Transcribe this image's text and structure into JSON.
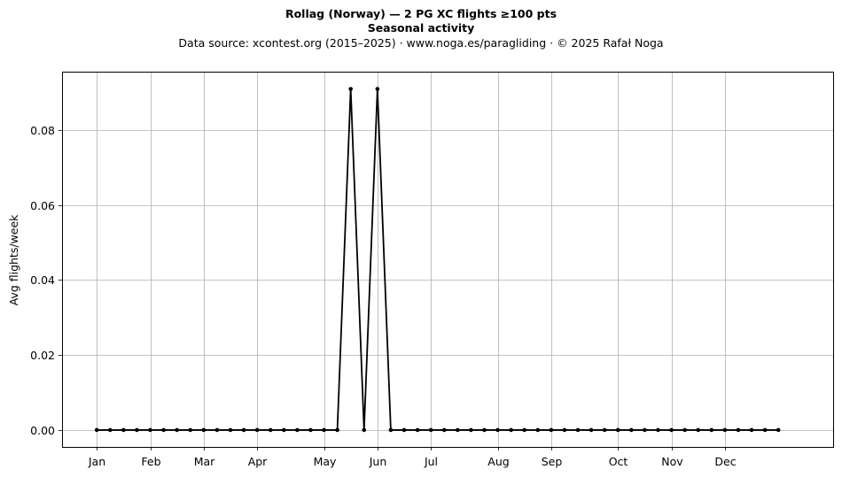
{
  "chart_data": {
    "type": "line",
    "title": "Rollag (Norway)  —  2 PG XC flights ≥100 pts",
    "subtitle": "Seasonal activity",
    "source": "Data source: xcontest.org (2015–2025)  ·  www.noga.es/paragliding  ·  © 2025 Rafał Noga",
    "xlabel": "",
    "ylabel": "Avg flights/week",
    "ylim": [
      -0.0045,
      0.0955
    ],
    "yticks": [
      0.0,
      0.02,
      0.04,
      0.06,
      0.08
    ],
    "ytick_labels": [
      "0.00",
      "0.02",
      "0.04",
      "0.06",
      "0.08"
    ],
    "xlim": [
      -2.6,
      55.1
    ],
    "xticks": [
      0,
      4,
      8,
      12,
      17,
      21,
      25,
      30,
      34,
      39,
      43,
      47
    ],
    "xtick_labels": [
      "Jan",
      "Feb",
      "Mar",
      "Apr",
      "May",
      "Jun",
      "Jul",
      "Aug",
      "Sep",
      "Oct",
      "Nov",
      "Dec"
    ],
    "grid": true,
    "line_color": "#000000",
    "x": [
      0,
      1,
      2,
      3,
      4,
      5,
      6,
      7,
      8,
      9,
      10,
      11,
      12,
      13,
      14,
      15,
      16,
      17,
      18,
      19,
      20,
      21,
      22,
      23,
      24,
      25,
      26,
      27,
      28,
      29,
      30,
      31,
      32,
      33,
      34,
      35,
      36,
      37,
      38,
      39,
      40,
      41,
      42,
      43,
      44,
      45,
      46,
      47,
      48,
      49,
      50,
      51
    ],
    "values": [
      0,
      0,
      0,
      0,
      0,
      0,
      0,
      0,
      0,
      0,
      0,
      0,
      0,
      0,
      0,
      0,
      0,
      0,
      0,
      0.0909,
      0,
      0.0909,
      0,
      0,
      0,
      0,
      0,
      0,
      0,
      0,
      0,
      0,
      0,
      0,
      0,
      0,
      0,
      0,
      0,
      0,
      0,
      0,
      0,
      0,
      0,
      0,
      0,
      0,
      0,
      0,
      0,
      0
    ]
  }
}
